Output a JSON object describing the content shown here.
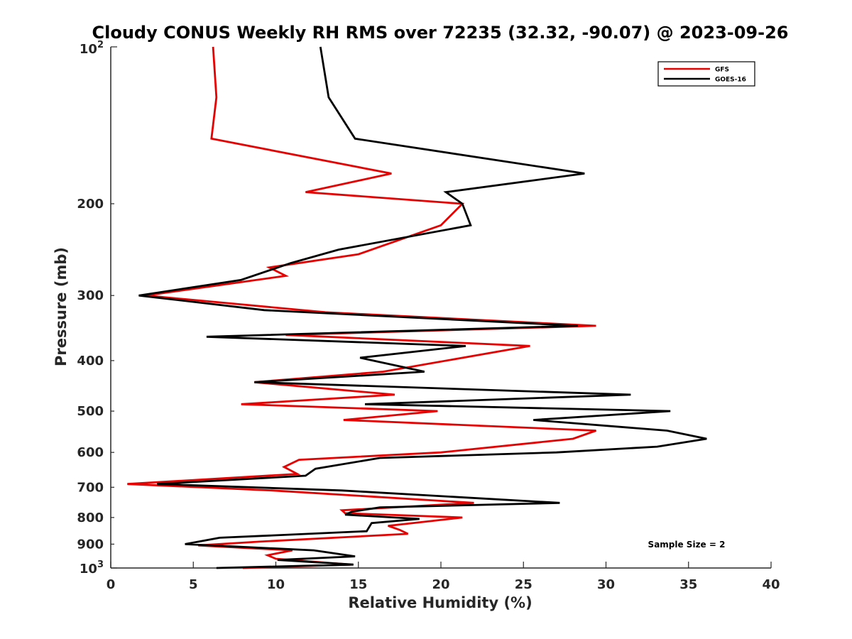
{
  "chart_data": {
    "type": "line",
    "title": "Cloudy CONUS Weekly RH RMS over 72235 (32.32, -90.07) @ 2023-09-26",
    "xlabel": "Relative Humidity (%)",
    "ylabel": "Pressure (mb)",
    "xlim": [
      0,
      40
    ],
    "ylim": [
      100,
      1000
    ],
    "yscale": "log",
    "yreversed": true,
    "xticks": [
      0,
      5,
      10,
      15,
      20,
      25,
      30,
      35,
      40
    ],
    "xtick_labels": [
      "0",
      "5",
      "10",
      "15",
      "20",
      "25",
      "30",
      "35",
      "40"
    ],
    "yticks": [
      200,
      300,
      400,
      500,
      600,
      700,
      800,
      900
    ],
    "ytick_labels": [
      "200",
      "300",
      "400",
      "500",
      "600",
      "700",
      "800",
      "900"
    ],
    "y_end_labels": {
      "top_base": "10",
      "top_exp": "2",
      "bottom_base": "10",
      "bottom_exp": "3"
    },
    "legend_position": "top-right",
    "annotation": "Sample Size = 2",
    "series": [
      {
        "name": "GFS",
        "color": "#e60000",
        "points": [
          [
            6.2,
            100
          ],
          [
            6.4,
            125
          ],
          [
            6.1,
            150
          ],
          [
            17.0,
            175
          ],
          [
            11.8,
            190
          ],
          [
            21.3,
            200
          ],
          [
            20.0,
            220
          ],
          [
            15.0,
            250
          ],
          [
            9.6,
            265
          ],
          [
            10.6,
            275
          ],
          [
            2.1,
            300
          ],
          [
            13.0,
            323
          ],
          [
            29.4,
            343
          ],
          [
            10.6,
            357
          ],
          [
            25.4,
            375
          ],
          [
            16.5,
            420
          ],
          [
            8.7,
            440
          ],
          [
            17.2,
            465
          ],
          [
            7.9,
            485
          ],
          [
            19.8,
            500
          ],
          [
            14.1,
            520
          ],
          [
            29.4,
            545
          ],
          [
            28.0,
            565
          ],
          [
            20.0,
            600
          ],
          [
            11.4,
            620
          ],
          [
            10.5,
            640
          ],
          [
            11.3,
            660
          ],
          [
            1.0,
            690
          ],
          [
            9.8,
            710
          ],
          [
            22.0,
            750
          ],
          [
            14.0,
            775
          ],
          [
            14.2,
            785
          ],
          [
            21.3,
            800
          ],
          [
            16.8,
            830
          ],
          [
            17.5,
            845
          ],
          [
            18.0,
            860
          ],
          [
            9.0,
            890
          ],
          [
            5.3,
            905
          ],
          [
            11.0,
            925
          ],
          [
            9.5,
            945
          ],
          [
            10.0,
            960
          ],
          [
            14.5,
            985
          ],
          [
            8.0,
            1000
          ]
        ]
      },
      {
        "name": "GOES-16",
        "color": "#000000",
        "points": [
          [
            12.7,
            100
          ],
          [
            13.2,
            125
          ],
          [
            14.8,
            150
          ],
          [
            28.7,
            175
          ],
          [
            20.3,
            190
          ],
          [
            21.3,
            200
          ],
          [
            21.8,
            220
          ],
          [
            13.8,
            245
          ],
          [
            10.9,
            260
          ],
          [
            7.9,
            280
          ],
          [
            1.7,
            300
          ],
          [
            9.3,
            320
          ],
          [
            28.3,
            343
          ],
          [
            5.8,
            360
          ],
          [
            21.5,
            375
          ],
          [
            15.1,
            395
          ],
          [
            19.0,
            420
          ],
          [
            8.7,
            440
          ],
          [
            31.5,
            465
          ],
          [
            15.4,
            485
          ],
          [
            33.9,
            500
          ],
          [
            25.6,
            520
          ],
          [
            33.7,
            545
          ],
          [
            36.1,
            565
          ],
          [
            33.1,
            585
          ],
          [
            27.0,
            600
          ],
          [
            16.3,
            615
          ],
          [
            12.4,
            645
          ],
          [
            11.8,
            665
          ],
          [
            2.8,
            690
          ],
          [
            14.0,
            710
          ],
          [
            27.2,
            750
          ],
          [
            16.3,
            765
          ],
          [
            14.6,
            780
          ],
          [
            14.2,
            790
          ],
          [
            18.7,
            805
          ],
          [
            15.8,
            820
          ],
          [
            15.5,
            850
          ],
          [
            6.6,
            875
          ],
          [
            4.5,
            900
          ],
          [
            12.3,
            925
          ],
          [
            14.8,
            950
          ],
          [
            10.1,
            965
          ],
          [
            14.7,
            985
          ],
          [
            6.4,
            1000
          ]
        ]
      }
    ]
  }
}
